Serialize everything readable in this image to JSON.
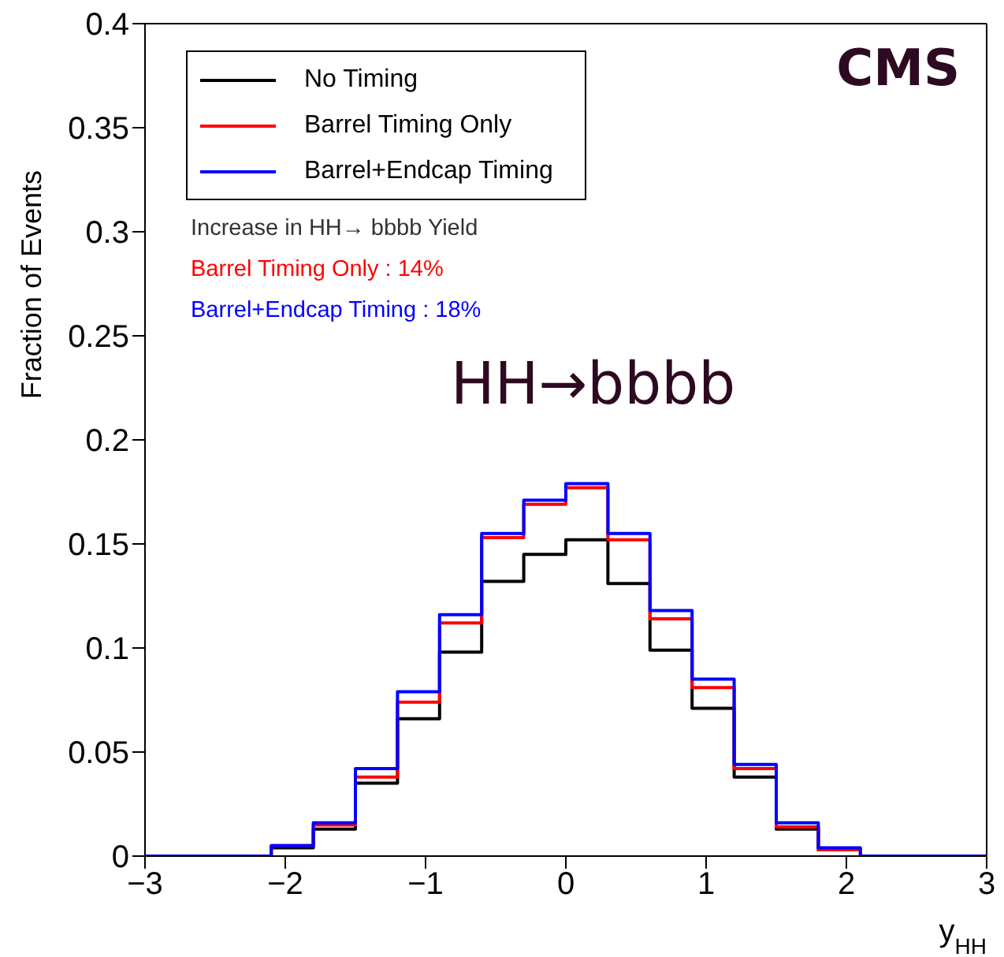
{
  "chart_data": {
    "type": "histogram",
    "xlabel": "y$_{HH}$",
    "ylabel": "Fraction of Events",
    "bins": [
      -3,
      -2.7,
      -2.4,
      -2.1,
      -1.8,
      -1.5,
      -1.2,
      -0.9,
      -0.6,
      -0.3,
      0,
      0.3,
      0.6,
      0.9,
      1.2,
      1.5,
      1.8,
      2.1,
      2.4,
      2.7,
      3
    ],
    "series": [
      {
        "name": "No Timing",
        "color": "#000000",
        "values": [
          0,
          0,
          0,
          0.004,
          0.013,
          0.035,
          0.066,
          0.098,
          0.132,
          0.145,
          0.152,
          0.131,
          0.099,
          0.071,
          0.038,
          0.013,
          0.003,
          0,
          0,
          0
        ]
      },
      {
        "name": "Barrel Timing Only",
        "color": "#ff0000",
        "values": [
          0,
          0,
          0,
          0.005,
          0.015,
          0.038,
          0.074,
          0.112,
          0.153,
          0.169,
          0.177,
          0.152,
          0.114,
          0.081,
          0.042,
          0.014,
          0.003,
          0,
          0,
          0
        ]
      },
      {
        "name": "Barrel+Endcap Timing",
        "color": "#0000ff",
        "values": [
          0,
          0,
          0,
          0.005,
          0.016,
          0.042,
          0.079,
          0.116,
          0.155,
          0.171,
          0.179,
          0.155,
          0.118,
          0.085,
          0.044,
          0.016,
          0.004,
          0,
          0,
          0
        ]
      }
    ],
    "xlim": [
      -3,
      3
    ],
    "xticks": [
      -3,
      -2,
      -1,
      0,
      1,
      2,
      3
    ],
    "ylim": [
      0,
      0.4
    ],
    "yticks": [
      0,
      0.05,
      0.1,
      0.15,
      0.2,
      0.25,
      0.3,
      0.35,
      0.4
    ],
    "legend": "top left",
    "grid": false,
    "annotations": [
      "CMS",
      "Increase in HH→ bbbb Yield",
      "Barrel Timing Only : 14%",
      "Barrel+Endcap Timing : 18%",
      "HH→bbbb"
    ]
  }
}
